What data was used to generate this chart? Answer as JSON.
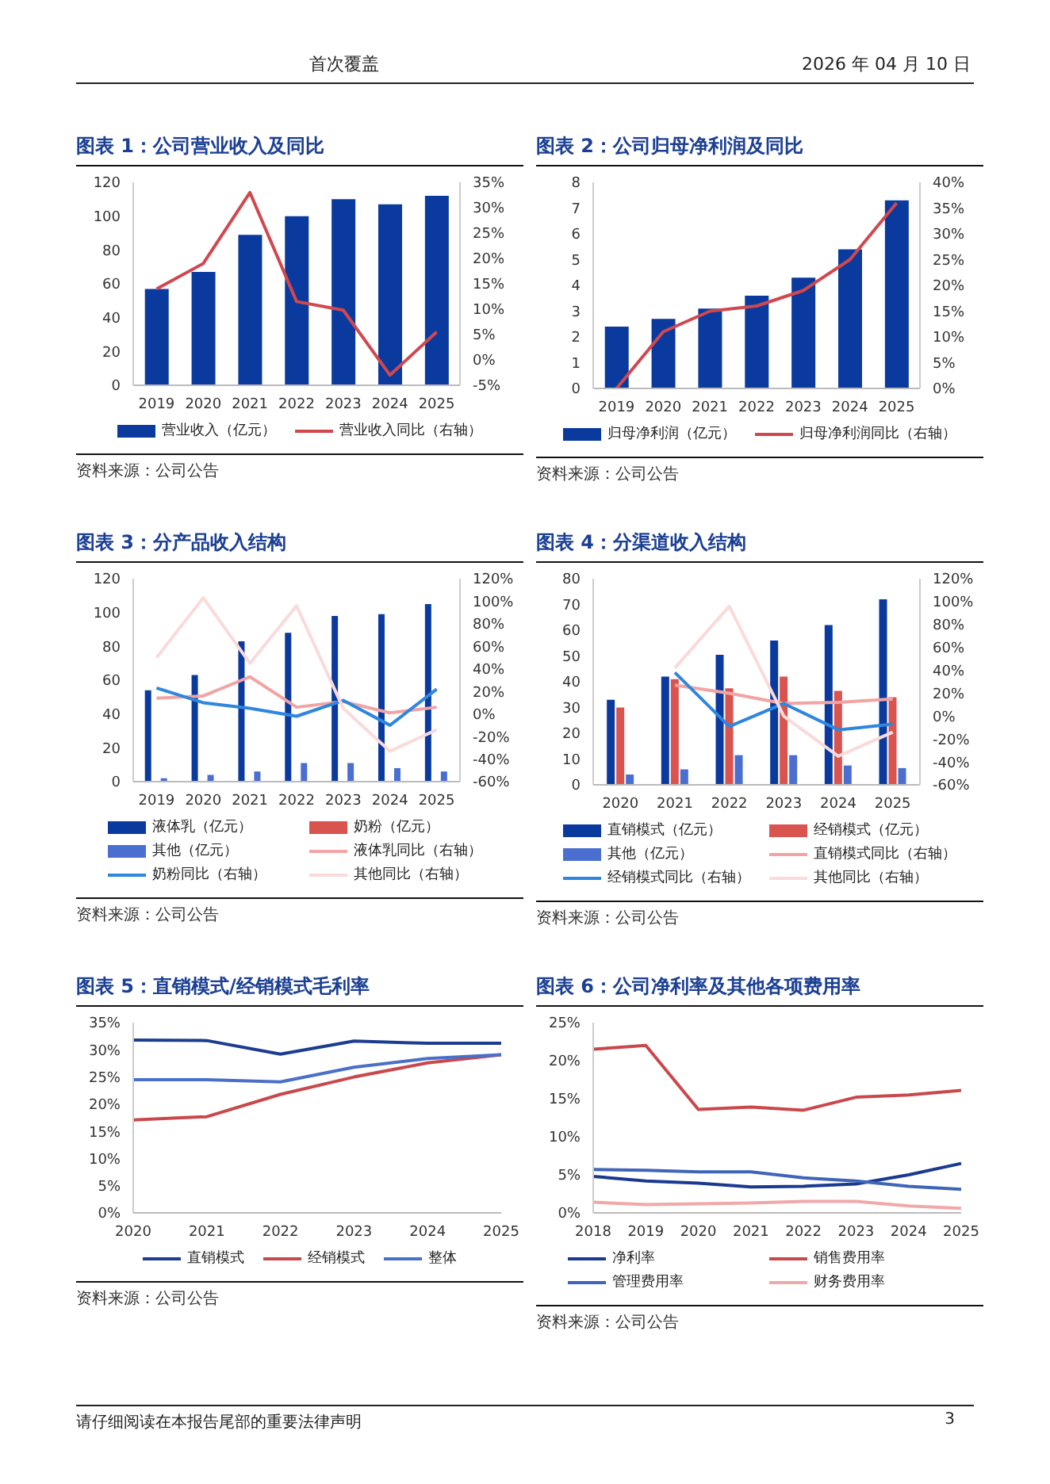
{
  "chart_data": [
    {
      "type": "bar",
      "title": "图表 1：公司营业收入及同比",
      "categories": [
        "2019",
        "2020",
        "2021",
        "2022",
        "2023",
        "2024",
        "2025"
      ],
      "series": [
        {
          "name": "营业收入（亿元）",
          "type": "bar",
          "color": "#0b3a9e",
          "values": [
            57,
            67,
            89,
            100,
            110,
            107,
            112
          ]
        },
        {
          "name": "营业收入同比（右轴）",
          "type": "line",
          "axis": "y2",
          "color": "#d0484e",
          "values": [
            14,
            19,
            33,
            11.5,
            9.8,
            -3,
            5.5
          ]
        }
      ],
      "ylim": [
        0,
        120
      ],
      "yticks": [
        0,
        20,
        40,
        60,
        80,
        100,
        120
      ],
      "y2lim": [
        -5,
        35
      ],
      "y2ticks": [
        {
          "value": -5,
          "label": "-5%"
        },
        {
          "value": 0,
          "label": "0%"
        },
        {
          "value": 5,
          "label": "5%"
        },
        {
          "value": 10,
          "label": "10%"
        },
        {
          "value": 15,
          "label": "15%"
        },
        {
          "value": 20,
          "label": "20%"
        },
        {
          "value": 25,
          "label": "25%"
        },
        {
          "value": 30,
          "label": "30%"
        },
        {
          "value": 35,
          "label": "35%"
        }
      ],
      "legend": "bottom",
      "annotations": [
        "首次覆盖",
        "2026 年 04 月 10 日",
        "资料来源：公司公告"
      ]
    },
    {
      "type": "bar",
      "title": "图表 2：公司归母净利润及同比",
      "categories": [
        "2019",
        "2020",
        "2021",
        "2022",
        "2023",
        "2024",
        "2025"
      ],
      "series": [
        {
          "name": "归母净利润（亿元）",
          "type": "bar",
          "color": "#0b3a9e",
          "values": [
            2.4,
            2.7,
            3.1,
            3.6,
            4.3,
            5.4,
            7.3
          ]
        },
        {
          "name": "归母净利润同比（右轴）",
          "type": "line",
          "axis": "y2",
          "color": "#d0484e",
          "values": [
            0,
            11,
            15,
            16,
            19,
            25,
            36
          ]
        }
      ],
      "ylim": [
        0,
        8
      ],
      "yticks": [
        0,
        1,
        2,
        3,
        4,
        5,
        6,
        7,
        8
      ],
      "y2lim": [
        0,
        40
      ],
      "y2ticks": [
        {
          "value": 0,
          "label": "0%"
        },
        {
          "value": 5,
          "label": "5%"
        },
        {
          "value": 10,
          "label": "10%"
        },
        {
          "value": 15,
          "label": "15%"
        },
        {
          "value": 20,
          "label": "20%"
        },
        {
          "value": 25,
          "label": "25%"
        },
        {
          "value": 30,
          "label": "30%"
        },
        {
          "value": 35,
          "label": "35%"
        },
        {
          "value": 40,
          "label": "40%"
        }
      ],
      "legend": "bottom",
      "annotations": [
        "资料来源：公司公告"
      ]
    },
    {
      "type": "bar",
      "title": "图表 3：分产品收入结构",
      "categories": [
        "2019",
        "2020",
        "2021",
        "2022",
        "2023",
        "2024",
        "2025"
      ],
      "series": [
        {
          "name": "液体乳（亿元）",
          "type": "bar",
          "color": "#0b3a9e",
          "values": [
            54,
            63,
            83,
            88,
            98,
            99,
            105
          ]
        },
        {
          "name": "奶粉（亿元）",
          "type": "bar",
          "color": "#d9534f",
          "values": [
            null,
            null,
            null,
            null,
            null,
            null,
            null
          ]
        },
        {
          "name": "其他（亿元）",
          "type": "bar",
          "color": "#4a6fd0",
          "values": [
            2,
            4,
            6,
            11,
            11,
            8,
            6
          ]
        },
        {
          "name": "液体乳同比（右轴）",
          "type": "line",
          "axis": "y2",
          "color": "#f2a3a3",
          "values": [
            14,
            16,
            33,
            6,
            11,
            1,
            6
          ]
        },
        {
          "name": "奶粉同比（右轴）",
          "type": "line",
          "axis": "y2",
          "color": "#2e86de",
          "values": [
            23,
            10,
            5,
            -2,
            12,
            -10,
            22
          ]
        },
        {
          "name": "其他同比（右轴）",
          "type": "line",
          "axis": "y2",
          "color": "#fadada",
          "values": [
            50,
            103,
            45,
            96,
            5,
            -33,
            -14
          ]
        }
      ],
      "ylim": [
        0,
        120
      ],
      "yticks": [
        0,
        20,
        40,
        60,
        80,
        100,
        120
      ],
      "y2lim": [
        -60,
        120
      ],
      "y2ticks": [
        {
          "value": -60,
          "label": "-60%"
        },
        {
          "value": -40,
          "label": "-40%"
        },
        {
          "value": -20,
          "label": "-20%"
        },
        {
          "value": 0,
          "label": "0%"
        },
        {
          "value": 20,
          "label": "20%"
        },
        {
          "value": 40,
          "label": "40%"
        },
        {
          "value": 60,
          "label": "60%"
        },
        {
          "value": 80,
          "label": "80%"
        },
        {
          "value": 100,
          "label": "100%"
        },
        {
          "value": 120,
          "label": "120%"
        }
      ],
      "legend": "bottom",
      "annotations": [
        "资料来源：公司公告"
      ]
    },
    {
      "type": "bar",
      "title": "图表 4：分渠道收入结构",
      "categories": [
        "2020",
        "2021",
        "2022",
        "2023",
        "2024",
        "2025"
      ],
      "series": [
        {
          "name": "直销模式（亿元）",
          "type": "bar",
          "color": "#0b3a9e",
          "values": [
            33,
            42,
            50.5,
            56,
            62,
            72
          ]
        },
        {
          "name": "经销模式（亿元）",
          "type": "bar",
          "color": "#d9534f",
          "values": [
            30,
            41,
            37.5,
            42,
            36.5,
            34
          ]
        },
        {
          "name": "其他（亿元）",
          "type": "bar",
          "color": "#4a6fd0",
          "values": [
            4,
            6,
            11.5,
            11.5,
            7.5,
            6.5
          ]
        },
        {
          "name": "直销模式同比（右轴）",
          "type": "line",
          "axis": "y2",
          "color": "#f2a3a3",
          "values": [
            null,
            27,
            20,
            11,
            12,
            15
          ]
        },
        {
          "name": "经销模式同比（右轴）",
          "type": "line",
          "axis": "y2",
          "color": "#2e86de",
          "values": [
            null,
            38,
            -9,
            11,
            -12,
            -7
          ]
        },
        {
          "name": "其他同比（右轴）",
          "type": "line",
          "axis": "y2",
          "color": "#fadada",
          "values": [
            null,
            42,
            96,
            0,
            -35,
            -14
          ]
        }
      ],
      "ylim": [
        0,
        80
      ],
      "yticks": [
        0,
        10,
        20,
        30,
        40,
        50,
        60,
        70,
        80
      ],
      "y2lim": [
        -60,
        120
      ],
      "y2ticks": [
        {
          "value": -60,
          "label": "-60%"
        },
        {
          "value": -40,
          "label": "-40%"
        },
        {
          "value": -20,
          "label": "-20%"
        },
        {
          "value": 0,
          "label": "0%"
        },
        {
          "value": 20,
          "label": "20%"
        },
        {
          "value": 40,
          "label": "40%"
        },
        {
          "value": 60,
          "label": "60%"
        },
        {
          "value": 80,
          "label": "80%"
        },
        {
          "value": 100,
          "label": "100%"
        },
        {
          "value": 120,
          "label": "120%"
        }
      ],
      "legend": "bottom",
      "annotations": [
        "资料来源：公司公告"
      ]
    },
    {
      "type": "line",
      "title": "图表 5：直销模式/经销模式毛利率",
      "categories": [
        "2020",
        "2021",
        "2022",
        "2023",
        "2024",
        "2025"
      ],
      "series": [
        {
          "name": "直销模式",
          "color": "#1c3d8f",
          "values": [
            31.8,
            31.7,
            29.2,
            31.6,
            31.2,
            31.2
          ]
        },
        {
          "name": "经销模式",
          "color": "#c9484c",
          "values": [
            17.1,
            17.7,
            21.8,
            25,
            27.6,
            29.1
          ]
        },
        {
          "name": "整体",
          "color": "#4a6fc8",
          "values": [
            24.5,
            24.5,
            24.1,
            26.8,
            28.4,
            29.1
          ]
        }
      ],
      "ylim": [
        0,
        35
      ],
      "yticks": [
        {
          "value": 0,
          "label": "0%"
        },
        {
          "value": 5,
          "label": "5%"
        },
        {
          "value": 10,
          "label": "10%"
        },
        {
          "value": 15,
          "label": "15%"
        },
        {
          "value": 20,
          "label": "20%"
        },
        {
          "value": 25,
          "label": "25%"
        },
        {
          "value": 30,
          "label": "30%"
        },
        {
          "value": 35,
          "label": "35%"
        }
      ],
      "legend": "bottom",
      "annotations": [
        "资料来源：公司公告"
      ]
    },
    {
      "type": "line",
      "title": "图表 6：公司净利率及其他各项费用率",
      "categories": [
        "2018",
        "2019",
        "2020",
        "2021",
        "2022",
        "2023",
        "2024",
        "2025"
      ],
      "series": [
        {
          "name": "净利率",
          "color": "#1a3a8f",
          "values": [
            4.8,
            4.2,
            3.9,
            3.4,
            3.5,
            3.8,
            5,
            6.5
          ]
        },
        {
          "name": "销售费用率",
          "color": "#c9484c",
          "values": [
            21.5,
            22,
            13.6,
            13.9,
            13.5,
            15.2,
            15.5,
            16.1
          ]
        },
        {
          "name": "管理费用率",
          "color": "#3f64b8",
          "values": [
            5.7,
            5.6,
            5.4,
            5.4,
            4.6,
            4.2,
            3.5,
            3.1
          ]
        },
        {
          "name": "财务费用率",
          "color": "#f0a8a8",
          "values": [
            1.4,
            1.1,
            1.2,
            1.3,
            1.5,
            1.5,
            0.9,
            0.6
          ]
        }
      ],
      "ylim": [
        0,
        25
      ],
      "yticks": [
        {
          "value": 0,
          "label": "0%"
        },
        {
          "value": 5,
          "label": "5%"
        },
        {
          "value": 10,
          "label": "10%"
        },
        {
          "value": 15,
          "label": "15%"
        },
        {
          "value": 20,
          "label": "20%"
        },
        {
          "value": 25,
          "label": "25%"
        }
      ],
      "legend": "bottom",
      "annotations": [
        "资料来源：公司公告",
        "请仔细阅读在本报告尾部的重要法律声明",
        "3"
      ]
    }
  ]
}
